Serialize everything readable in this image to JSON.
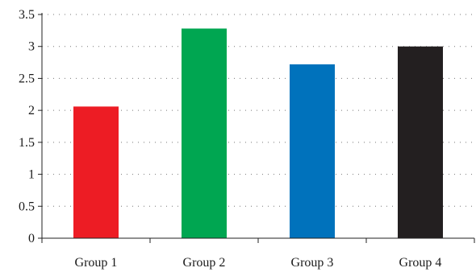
{
  "chart_data": {
    "type": "bar",
    "title": "",
    "xlabel": "",
    "ylabel": "",
    "categories": [
      "Group 1",
      "Group 2",
      "Group 3",
      "Group 4"
    ],
    "values": [
      2.06,
      3.28,
      2.72,
      3.0
    ],
    "colors": [
      "#ed1c24",
      "#00a651",
      "#0072bc",
      "#231f20"
    ],
    "ylim": [
      0,
      3.5
    ],
    "yticks": [
      0,
      0.5,
      1,
      1.5,
      2,
      2.5,
      3,
      3.5
    ],
    "ytick_labels": [
      "0",
      "0.5",
      "1",
      "1.5",
      "2",
      "2.5",
      "3",
      "3.5"
    ],
    "grid": true,
    "legend": "none"
  }
}
